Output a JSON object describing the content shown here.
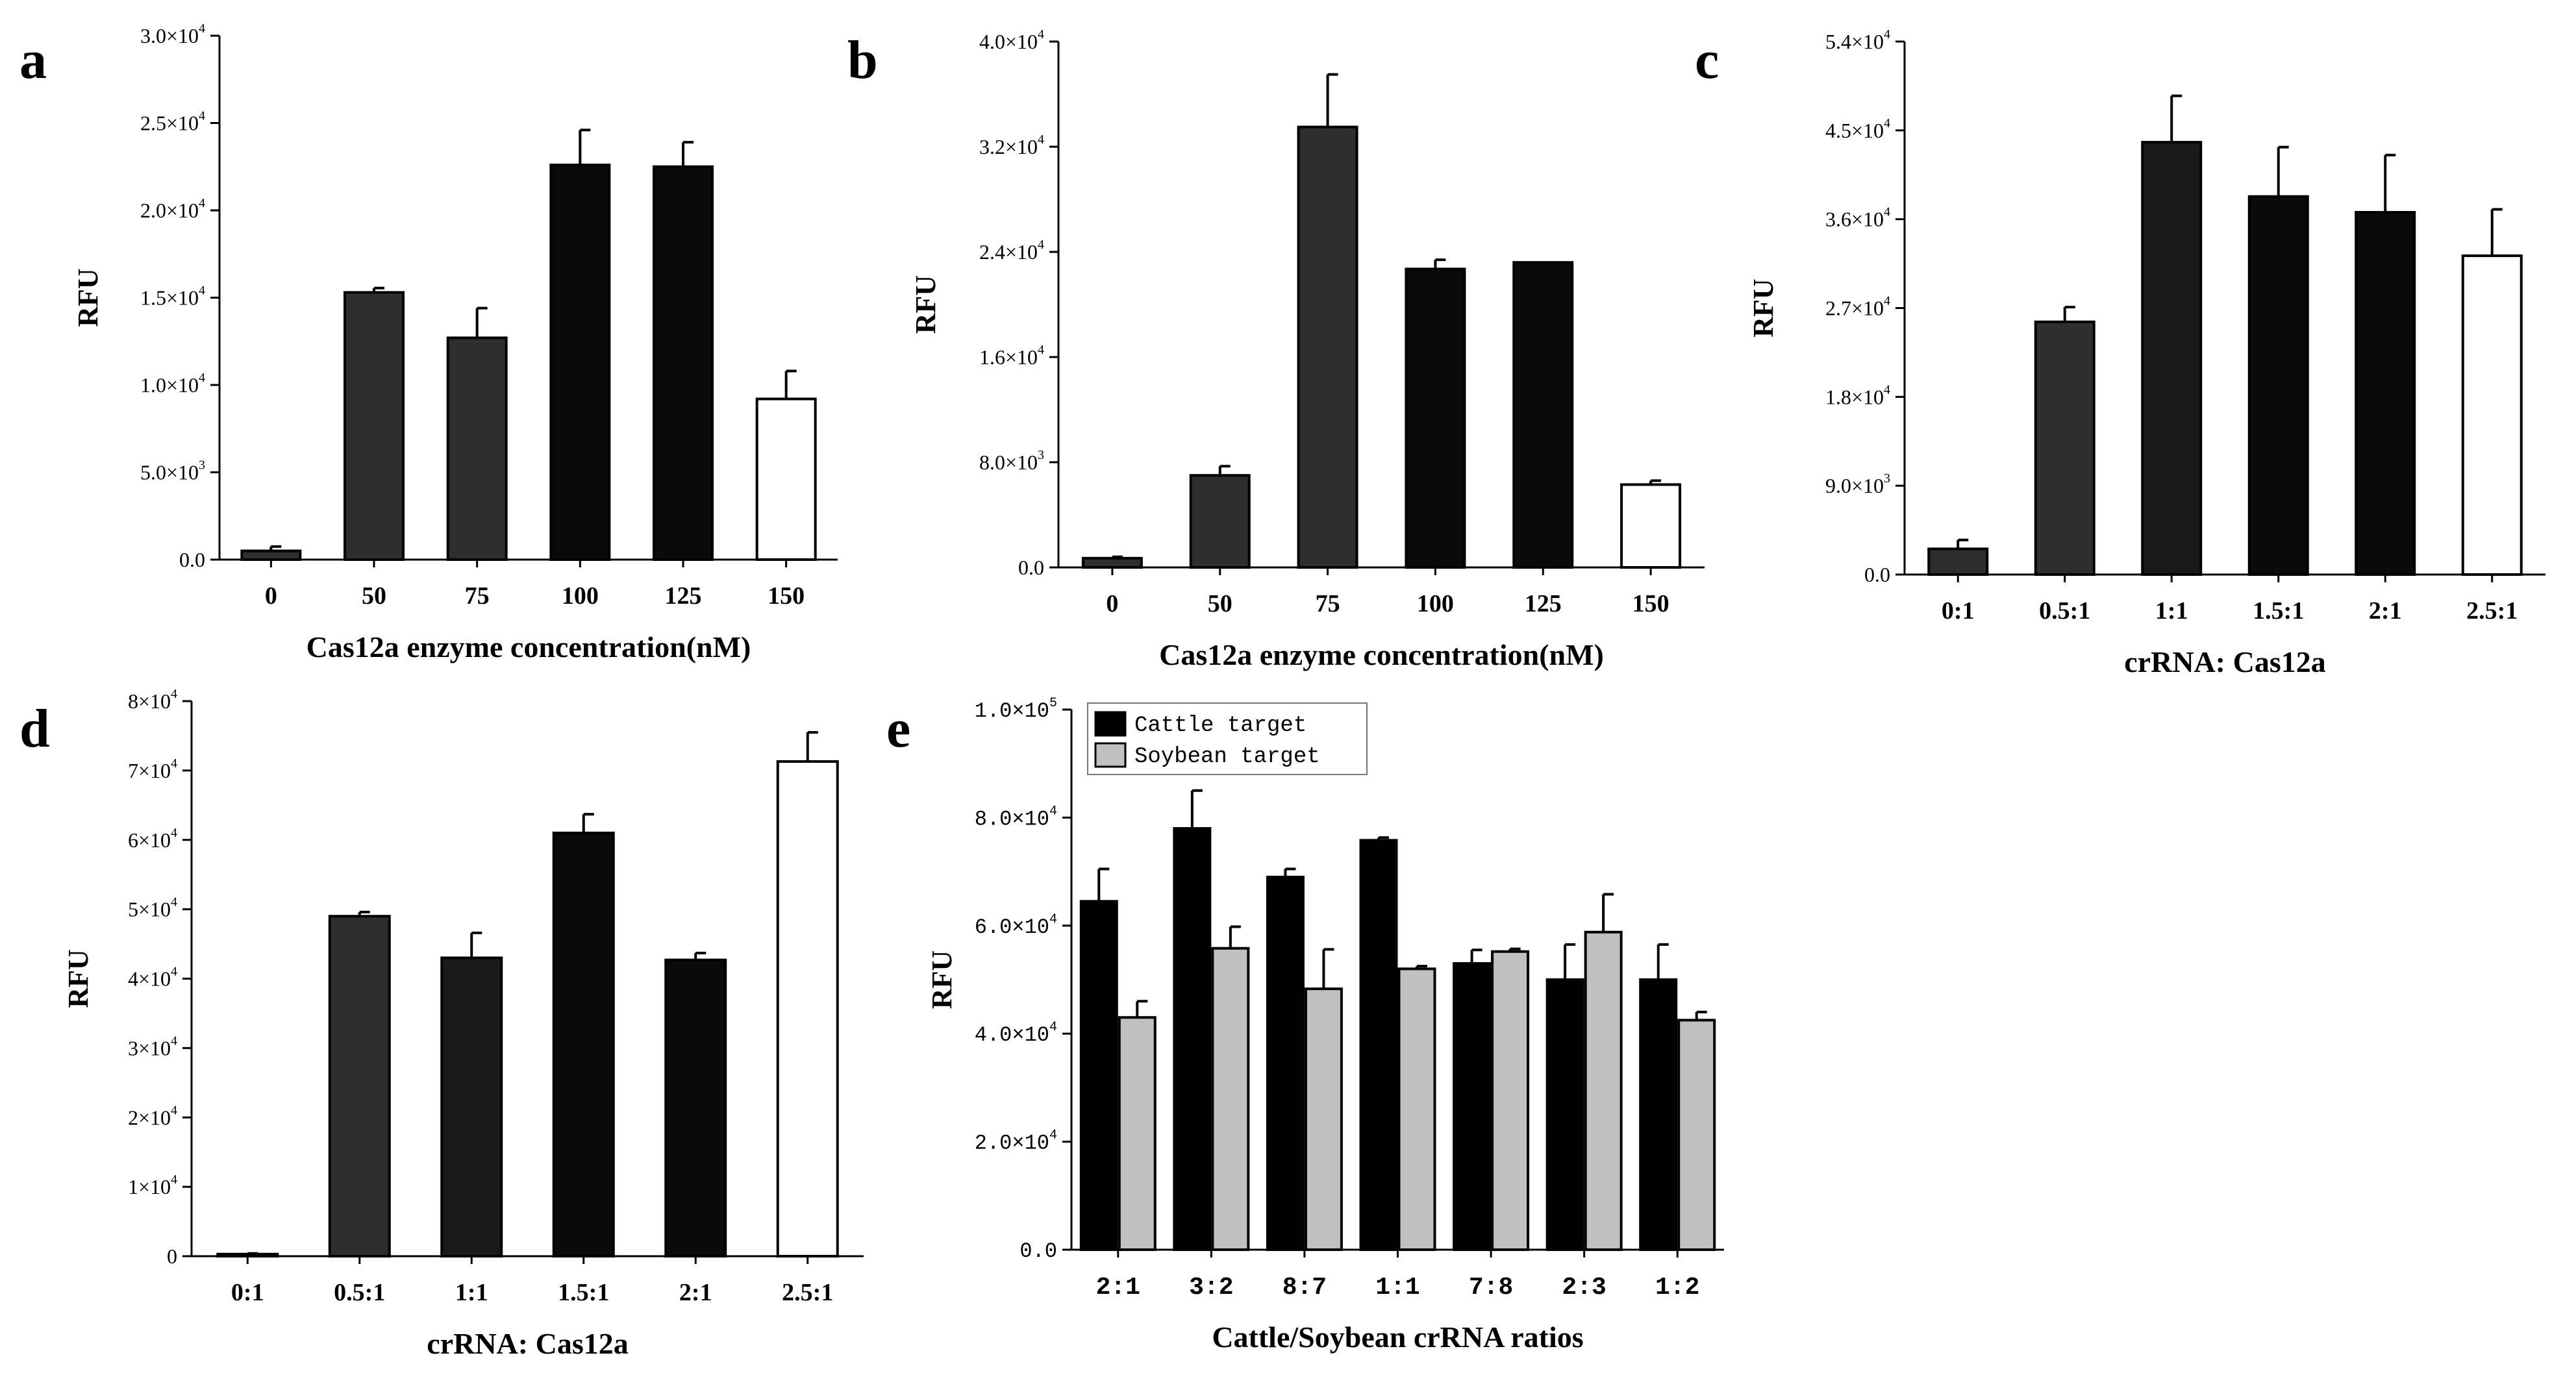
{
  "chart_data": [
    {
      "id": "a",
      "type": "bar",
      "panel_label": "a",
      "xlabel": "Cas12a enzyme concentration(nM)",
      "ylabel": "RFU",
      "categories": [
        "0",
        "50",
        "75",
        "100",
        "125",
        "150"
      ],
      "values": [
        500,
        15300,
        12700,
        22600,
        22500,
        9200
      ],
      "errors": [
        250,
        250,
        1700,
        2000,
        1400,
        1600
      ],
      "colors": [
        "#2e2e2e",
        "#2e2e2e",
        "#2e2e2e",
        "#0a0a0a",
        "#0a0a0a",
        "#ffffff"
      ],
      "ylim": [
        0,
        30000
      ],
      "yticks": [
        {
          "value": 0,
          "label": "0.0",
          "sup": ""
        },
        {
          "value": 5000,
          "label": "5.0×10",
          "sup": "3"
        },
        {
          "value": 10000,
          "label": "1.0×10",
          "sup": "4"
        },
        {
          "value": 15000,
          "label": "1.5×10",
          "sup": "4"
        },
        {
          "value": 20000,
          "label": "2.0×10",
          "sup": "4"
        },
        {
          "value": 25000,
          "label": "2.5×10",
          "sup": "4"
        },
        {
          "value": 30000,
          "label": "3.0×10",
          "sup": "4"
        }
      ]
    },
    {
      "id": "b",
      "type": "bar",
      "panel_label": "b",
      "xlabel": "Cas12a enzyme concentration(nM)",
      "ylabel": "RFU",
      "categories": [
        "0",
        "50",
        "75",
        "100",
        "125",
        "150"
      ],
      "values": [
        700,
        7000,
        33500,
        22700,
        23200,
        6300
      ],
      "errors": [
        100,
        700,
        4000,
        700,
        0,
        300
      ],
      "colors": [
        "#2e2e2e",
        "#2e2e2e",
        "#2e2e2e",
        "#0a0a0a",
        "#0a0a0a",
        "#ffffff"
      ],
      "ylim": [
        0,
        40000
      ],
      "yticks": [
        {
          "value": 0,
          "label": "0.0",
          "sup": ""
        },
        {
          "value": 8000,
          "label": "8.0×10",
          "sup": "3"
        },
        {
          "value": 16000,
          "label": "1.6×10",
          "sup": "4"
        },
        {
          "value": 24000,
          "label": "2.4×10",
          "sup": "4"
        },
        {
          "value": 32000,
          "label": "3.2×10",
          "sup": "4"
        },
        {
          "value": 40000,
          "label": "4.0×10",
          "sup": "4"
        }
      ]
    },
    {
      "id": "c",
      "type": "bar",
      "panel_label": "c",
      "xlabel": "crRNA: Cas12a",
      "ylabel": "RFU",
      "categories": [
        "0:1",
        "0.5:1",
        "1:1",
        "1.5:1",
        "2:1",
        "2.5:1"
      ],
      "values": [
        2600,
        25600,
        43800,
        38300,
        36700,
        32300
      ],
      "errors": [
        900,
        1500,
        4700,
        5000,
        5800,
        4700
      ],
      "colors": [
        "#2e2e2e",
        "#2e2e2e",
        "#1a1a1a",
        "#0a0a0a",
        "#0a0a0a",
        "#ffffff"
      ],
      "ylim": [
        0,
        54000
      ],
      "yticks": [
        {
          "value": 0,
          "label": "0.0",
          "sup": ""
        },
        {
          "value": 9000,
          "label": "9.0×10",
          "sup": "3"
        },
        {
          "value": 18000,
          "label": "1.8×10",
          "sup": "4"
        },
        {
          "value": 27000,
          "label": "2.7×10",
          "sup": "4"
        },
        {
          "value": 36000,
          "label": "3.6×10",
          "sup": "4"
        },
        {
          "value": 45000,
          "label": "4.5×10",
          "sup": "4"
        },
        {
          "value": 54000,
          "label": "5.4×10",
          "sup": "4"
        }
      ]
    },
    {
      "id": "d",
      "type": "bar",
      "panel_label": "d",
      "xlabel": "crRNA: Cas12a",
      "ylabel": "RFU",
      "categories": [
        "0:1",
        "0.5:1",
        "1:1",
        "1.5:1",
        "2:1",
        "2.5:1"
      ],
      "values": [
        300,
        49000,
        43000,
        61000,
        42700,
        71300
      ],
      "errors": [
        100,
        600,
        3600,
        2700,
        1000,
        4200
      ],
      "colors": [
        "#2e2e2e",
        "#2e2e2e",
        "#1a1a1a",
        "#0a0a0a",
        "#0a0a0a",
        "#ffffff"
      ],
      "ylim": [
        0,
        80000
      ],
      "yticks": [
        {
          "value": 0,
          "label": "0",
          "sup": ""
        },
        {
          "value": 10000,
          "label": "1×10",
          "sup": "4"
        },
        {
          "value": 20000,
          "label": "2×10",
          "sup": "4"
        },
        {
          "value": 30000,
          "label": "3×10",
          "sup": "4"
        },
        {
          "value": 40000,
          "label": "4×10",
          "sup": "4"
        },
        {
          "value": 50000,
          "label": "5×10",
          "sup": "4"
        },
        {
          "value": 60000,
          "label": "6×10",
          "sup": "4"
        },
        {
          "value": 70000,
          "label": "7×10",
          "sup": "4"
        },
        {
          "value": 80000,
          "label": "8×10",
          "sup": "4"
        }
      ]
    },
    {
      "id": "e",
      "type": "bar",
      "grouped": true,
      "panel_label": "e",
      "xlabel": "Cattle/Soybean crRNA ratios",
      "ylabel": "RFU",
      "categories": [
        "2:1",
        "3:2",
        "8:7",
        "1:1",
        "7:8",
        "2:3",
        "1:2"
      ],
      "series": [
        {
          "name": "Cattle target",
          "color": "#000000",
          "values": [
            64500,
            78000,
            69000,
            75800,
            53000,
            50000,
            50000
          ],
          "errors": [
            6000,
            7000,
            1500,
            500,
            2500,
            6500,
            6500
          ]
        },
        {
          "name": "Soybean target",
          "color": "#c0c0c0",
          "values": [
            43000,
            55800,
            48300,
            52000,
            55200,
            58800,
            42500
          ],
          "errors": [
            3000,
            4000,
            7300,
            500,
            500,
            7000,
            1500
          ]
        }
      ],
      "ylim": [
        0,
        100000
      ],
      "legend_position": "top-left",
      "yticks": [
        {
          "value": 0,
          "label": "0.0",
          "sup": ""
        },
        {
          "value": 20000,
          "label": "2.0×10",
          "sup": "4"
        },
        {
          "value": 40000,
          "label": "4.0×10",
          "sup": "4"
        },
        {
          "value": 60000,
          "label": "6.0×10",
          "sup": "4"
        },
        {
          "value": 80000,
          "label": "8.0×10",
          "sup": "4"
        },
        {
          "value": 100000,
          "label": "1.0×10",
          "sup": "5"
        }
      ]
    }
  ]
}
